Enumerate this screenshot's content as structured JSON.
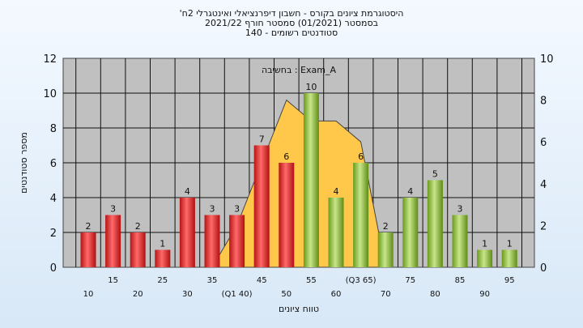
{
  "chart_data": {
    "type": "bar",
    "title_lines": [
      "'היסטוגרמת ציונים בקורס - חשבון דיפרנציאלי ואינטגרלי 2ח",
      "בסמסטר  (01/2021)  סמסטר חורף 2021/22",
      "סטודנטים רשומים - 140"
    ],
    "annotation": "בחשיבה : Exam_A",
    "xlabel": "טווח ציונים",
    "ylabel": "מספר סטודנטים",
    "ylim": [
      0,
      12
    ],
    "y_ticks": [
      0,
      2,
      4,
      6,
      8,
      10,
      12
    ],
    "y2lim": [
      0,
      10
    ],
    "y2_ticks": [
      0,
      2,
      4,
      6,
      8,
      10
    ],
    "grid": true,
    "categories": [
      "10",
      "15",
      "20",
      "25",
      "30",
      "35",
      "(Q1 40)",
      "45",
      "50",
      "55",
      "60",
      "(Q3 65)",
      "70",
      "75",
      "80",
      "85",
      "90",
      "95"
    ],
    "values": [
      2,
      3,
      2,
      1,
      4,
      3,
      3,
      7,
      6,
      10,
      4,
      6,
      2,
      4,
      5,
      3,
      1,
      1
    ],
    "bar_colors": [
      "red",
      "red",
      "red",
      "red",
      "red",
      "red",
      "red",
      "red",
      "red",
      "green",
      "green",
      "green",
      "green",
      "green",
      "green",
      "green",
      "green",
      "green"
    ],
    "area_y2_values": [
      0,
      0,
      0,
      0,
      0,
      0,
      2,
      5,
      8,
      7,
      7,
      6,
      0,
      0,
      0,
      0,
      0,
      0
    ],
    "colors": {
      "red_bar": "#e02020",
      "green_bar": "#8cbf2e",
      "area": "#ffc84a",
      "plot_bg": "#c0c0c0",
      "grid": "#000000"
    }
  }
}
